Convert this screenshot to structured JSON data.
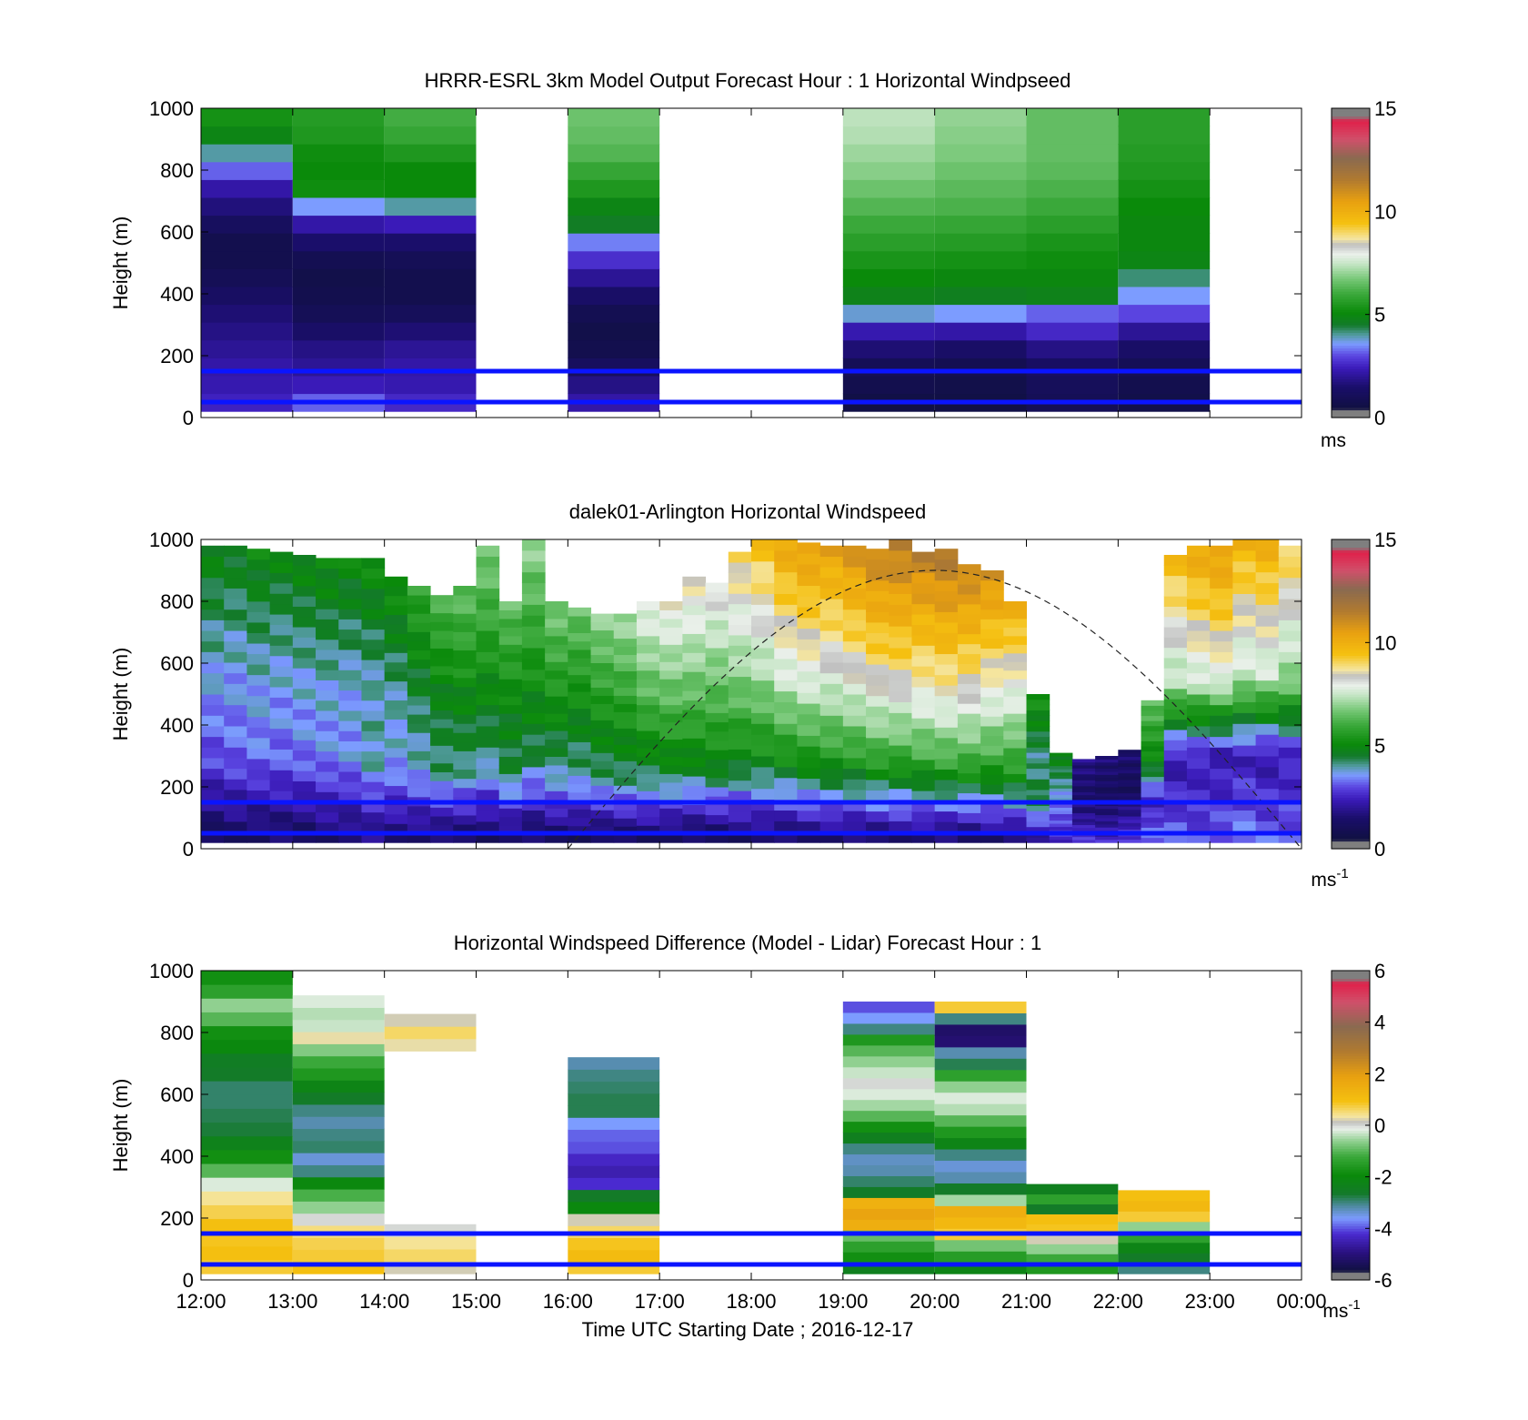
{
  "figure": {
    "xlabel": "Time UTC  Starting Date ; 2016-12-17",
    "x_ticks": [
      "12:00",
      "13:00",
      "14:00",
      "15:00",
      "16:00",
      "17:00",
      "18:00",
      "19:00",
      "20:00",
      "21:00",
      "22:00",
      "23:00",
      "00:00"
    ],
    "y_ticks": [
      "0",
      "200",
      "400",
      "600",
      "800",
      "1000"
    ],
    "ylabel": "Height (m)"
  },
  "chart_data": [
    {
      "type": "heatmap",
      "title": "HRRR-ESRL 3km Model Output   Forecast Hour : 1 Horizontal Windpseed",
      "ylabel": "Height (m)",
      "xlabel": "",
      "xlim": [
        12,
        24
      ],
      "ylim": [
        0,
        1000
      ],
      "colorbar": {
        "min": 0,
        "max": 15,
        "ticks": [
          "0",
          "5",
          "10",
          "15"
        ],
        "unit": "ms"
      },
      "reference_lines_m": [
        50,
        150
      ],
      "columns": [
        {
          "start": 12,
          "end": 13,
          "values": [
            2.5,
            2.3,
            2.2,
            2.0,
            1.8,
            1.6,
            1.3,
            1.0,
            0.8,
            0.8,
            1.2,
            1.7,
            2.2,
            3.2,
            4.0,
            4.9,
            5.3
          ]
        },
        {
          "start": 13,
          "end": 14,
          "values": [
            3.2,
            2.4,
            2.0,
            1.8,
            1.4,
            1.0,
            0.8,
            0.7,
            0.9,
            1.5,
            2.2,
            3.6,
            5.2,
            5.1,
            5.2,
            5.5,
            5.6
          ]
        },
        {
          "start": 14,
          "end": 15,
          "values": [
            2.6,
            2.3,
            2.2,
            2.0,
            1.6,
            1.1,
            0.8,
            0.8,
            1.0,
            1.5,
            2.4,
            4.0,
            5.1,
            5.1,
            5.5,
            5.9,
            6.1
          ]
        },
        {
          "start": 16,
          "end": 17,
          "values": [
            2.2,
            1.8,
            1.2,
            0.8,
            0.7,
            0.9,
            1.4,
            2.0,
            2.7,
            3.4,
            4.6,
            4.9,
            5.5,
            5.9,
            6.3,
            6.5,
            6.6
          ]
        },
        {
          "start": 19,
          "end": 20,
          "values": [
            0.6,
            0.8,
            1.0,
            1.6,
            2.3,
            3.8,
            4.8,
            5.1,
            5.4,
            5.7,
            6.0,
            6.3,
            6.6,
            6.9,
            7.1,
            7.3,
            7.4
          ]
        },
        {
          "start": 20,
          "end": 21,
          "values": [
            0.6,
            0.7,
            0.9,
            1.4,
            2.2,
            3.6,
            4.7,
            5.0,
            5.3,
            5.6,
            5.9,
            6.2,
            6.4,
            6.6,
            6.8,
            6.9,
            7.0
          ]
        },
        {
          "start": 21,
          "end": 22,
          "values": [
            1.0,
            1.1,
            1.3,
            1.8,
            2.6,
            3.2,
            4.8,
            5.0,
            5.2,
            5.4,
            5.7,
            6.0,
            6.2,
            6.4,
            6.5,
            6.5,
            6.5
          ]
        },
        {
          "start": 22,
          "end": 23,
          "values": [
            0.7,
            0.8,
            1.0,
            1.4,
            2.0,
            3.0,
            3.6,
            4.2,
            4.9,
            5.0,
            5.0,
            5.1,
            5.3,
            5.5,
            5.6,
            5.7,
            5.7
          ]
        }
      ]
    },
    {
      "type": "heatmap",
      "title": "dalek01-Arlington  Horizontal Windspeed",
      "ylabel": "Height (m)",
      "xlabel": "",
      "xlim": [
        12,
        24
      ],
      "ylim": [
        0,
        1000
      ],
      "colorbar": {
        "min": 0,
        "max": 15,
        "ticks": [
          "0",
          "5",
          "10",
          "15"
        ],
        "unit": "ms-1"
      },
      "reference_lines_m": [
        50,
        150
      ],
      "overlay_curve": "dashed arc, rises from 16:00 (0 m) to peak ~900 m near 20:00, back to 0 m at 00:00",
      "observations": [
        {
          "t": 12.0,
          "top": 980,
          "surf": 1.2,
          "mid": 3.0,
          "upper": 4.9
        },
        {
          "t": 12.25,
          "top": 980,
          "surf": 1.3,
          "mid": 3.2,
          "upper": 4.8
        },
        {
          "t": 12.5,
          "top": 970,
          "surf": 1.2,
          "mid": 3.3,
          "upper": 5.0
        },
        {
          "t": 12.75,
          "top": 960,
          "surf": 1.4,
          "mid": 3.2,
          "upper": 4.9
        },
        {
          "t": 13.0,
          "top": 950,
          "surf": 1.3,
          "mid": 3.3,
          "upper": 5.0
        },
        {
          "t": 13.25,
          "top": 940,
          "surf": 1.5,
          "mid": 3.4,
          "upper": 5.1
        },
        {
          "t": 13.5,
          "top": 940,
          "surf": 1.5,
          "mid": 3.5,
          "upper": 5.0
        },
        {
          "t": 13.75,
          "top": 940,
          "surf": 1.8,
          "mid": 4.0,
          "upper": 5.2
        },
        {
          "t": 14.0,
          "top": 880,
          "surf": 1.6,
          "mid": 3.6,
          "upper": 5.3
        },
        {
          "t": 14.25,
          "top": 850,
          "surf": 1.5,
          "mid": 3.8,
          "upper": 5.8
        },
        {
          "t": 14.5,
          "top": 820,
          "surf": 1.4,
          "mid": 4.2,
          "upper": 6.2
        },
        {
          "t": 14.75,
          "top": 850,
          "surf": 1.4,
          "mid": 4.2,
          "upper": 6.5
        },
        {
          "t": 15.0,
          "top": 980,
          "surf": 1.3,
          "mid": 4.2,
          "upper": 6.8
        },
        {
          "t": 15.25,
          "top": 800,
          "surf": 1.4,
          "mid": 4.4,
          "upper": 6.5
        },
        {
          "t": 15.5,
          "top": 1000,
          "surf": 1.3,
          "mid": 4.4,
          "upper": 7.0
        },
        {
          "t": 15.75,
          "top": 800,
          "surf": 1.3,
          "mid": 4.0,
          "upper": 6.8
        },
        {
          "t": 16.0,
          "top": 780,
          "surf": 1.2,
          "mid": 4.0,
          "upper": 6.6
        },
        {
          "t": 16.25,
          "top": 760,
          "surf": 1.2,
          "mid": 4.2,
          "upper": 7.0
        },
        {
          "t": 16.5,
          "top": 760,
          "surf": 1.3,
          "mid": 4.3,
          "upper": 7.2
        },
        {
          "t": 16.75,
          "top": 800,
          "surf": 1.3,
          "mid": 4.4,
          "upper": 8.0
        },
        {
          "t": 17.0,
          "top": 800,
          "surf": 1.2,
          "mid": 4.6,
          "upper": 8.2
        },
        {
          "t": 17.25,
          "top": 880,
          "surf": 1.2,
          "mid": 4.8,
          "upper": 8.5
        },
        {
          "t": 17.5,
          "top": 860,
          "surf": 1.2,
          "mid": 4.9,
          "upper": 8.3
        },
        {
          "t": 17.75,
          "top": 960,
          "surf": 1.3,
          "mid": 5.0,
          "upper": 9.0
        },
        {
          "t": 18.0,
          "top": 1000,
          "surf": 1.4,
          "mid": 5.2,
          "upper": 9.5
        },
        {
          "t": 18.25,
          "top": 1000,
          "surf": 1.4,
          "mid": 5.4,
          "upper": 10.2
        },
        {
          "t": 18.5,
          "top": 990,
          "surf": 1.5,
          "mid": 5.5,
          "upper": 10.5
        },
        {
          "t": 18.75,
          "top": 980,
          "surf": 1.5,
          "mid": 5.6,
          "upper": 10.4
        },
        {
          "t": 19.0,
          "top": 980,
          "surf": 1.5,
          "mid": 5.7,
          "upper": 10.8
        },
        {
          "t": 19.25,
          "top": 970,
          "surf": 1.5,
          "mid": 5.9,
          "upper": 11.2
        },
        {
          "t": 19.5,
          "top": 1000,
          "surf": 1.6,
          "mid": 6.0,
          "upper": 11.5
        },
        {
          "t": 19.75,
          "top": 960,
          "surf": 1.5,
          "mid": 6.0,
          "upper": 11.3
        },
        {
          "t": 20.0,
          "top": 970,
          "surf": 1.5,
          "mid": 6.2,
          "upper": 11.6
        },
        {
          "t": 20.25,
          "top": 920,
          "surf": 1.4,
          "mid": 6.0,
          "upper": 11.2
        },
        {
          "t": 20.5,
          "top": 900,
          "surf": 1.5,
          "mid": 5.8,
          "upper": 10.8
        },
        {
          "t": 20.75,
          "top": 800,
          "surf": 1.5,
          "mid": 5.5,
          "upper": 10.0
        },
        {
          "t": 21.0,
          "top": 500,
          "surf": 1.8,
          "mid": 4.6,
          "upper": 5.4
        },
        {
          "t": 21.25,
          "top": 310,
          "surf": 2.6,
          "mid": 3.0,
          "upper": 5.0
        },
        {
          "t": 21.5,
          "top": 290,
          "surf": 2.8,
          "mid": 2.0,
          "upper": 1.8
        },
        {
          "t": 21.75,
          "top": 300,
          "surf": 2.6,
          "mid": 1.8,
          "upper": 1.6
        },
        {
          "t": 22.0,
          "top": 320,
          "surf": 3.0,
          "mid": 2.0,
          "upper": 1.5
        },
        {
          "t": 22.25,
          "top": 480,
          "surf": 3.4,
          "mid": 2.4,
          "upper": 6.5
        },
        {
          "t": 22.5,
          "top": 950,
          "surf": 3.2,
          "mid": 2.2,
          "upper": 9.6
        },
        {
          "t": 22.75,
          "top": 980,
          "surf": 3.0,
          "mid": 2.4,
          "upper": 10.2
        },
        {
          "t": 23.0,
          "top": 980,
          "surf": 3.2,
          "mid": 2.2,
          "upper": 10.5
        },
        {
          "t": 23.25,
          "top": 1000,
          "surf": 3.4,
          "mid": 2.4,
          "upper": 9.8
        },
        {
          "t": 23.5,
          "top": 1000,
          "surf": 3.2,
          "mid": 2.2,
          "upper": 10.0
        },
        {
          "t": 23.75,
          "top": 980,
          "surf": 3.2,
          "mid": 2.4,
          "upper": 9.2
        }
      ]
    },
    {
      "type": "heatmap",
      "title": "Horizontal Windspeed Difference (Model - Lidar) Forecast Hour : 1",
      "ylabel": "Height (m)",
      "xlabel": "Time UTC  Starting Date ; 2016-12-17",
      "xlim": [
        12,
        24
      ],
      "ylim": [
        0,
        1000
      ],
      "colorbar": {
        "min": -6,
        "max": 6,
        "ticks": [
          "-6",
          "-4",
          "-2",
          "0",
          "2",
          "4",
          "6"
        ],
        "unit": "ms-1"
      },
      "reference_lines_m": [
        50,
        150
      ],
      "columns": [
        {
          "start": 12,
          "end": 13,
          "top": 1000,
          "values": [
            0.8,
            1.0,
            0.9,
            1.0,
            0.7,
            0.4,
            -0.2,
            -1.0,
            -1.8,
            -2.3,
            -2.7,
            -2.8,
            -2.9,
            -2.9,
            -2.6,
            -2.5,
            -2.0,
            -1.8,
            -1.0,
            -0.6,
            -1.4,
            -1.8
          ]
        },
        {
          "start": 13,
          "end": 14,
          "top": 920,
          "values": [
            1.0,
            0.8,
            0.7,
            0.5,
            0.0,
            -0.6,
            -1.1,
            -2.0,
            -3.0,
            -3.4,
            -2.9,
            -3.0,
            -3.2,
            -3.0,
            -2.6,
            -2.2,
            -1.6,
            -1.2,
            -0.7,
            0.3,
            -0.3,
            -0.4,
            -0.2
          ]
        },
        {
          "start": 14,
          "end": 15,
          "top": 860,
          "values": [
            0.2,
            0.6,
            0.4,
            0.0,
            null,
            null,
            null,
            null,
            null,
            null,
            null,
            null,
            null,
            null,
            null,
            null,
            null,
            null,
            0.3,
            0.6,
            0.2
          ]
        },
        {
          "start": 16,
          "end": 17,
          "top": 720,
          "values": [
            0.8,
            1.1,
            0.9,
            0.6,
            0.2,
            -2.0,
            -2.6,
            -4.2,
            -4.5,
            -4.3,
            -4.0,
            -3.9,
            -3.6,
            -2.8,
            -2.8,
            -2.9,
            -3.0,
            -3.2
          ]
        },
        {
          "start": 19,
          "end": 20,
          "top": 900,
          "values": [
            -2.4,
            -1.8,
            -1.4,
            -0.9,
            1.5,
            1.8,
            1.4,
            -2.6,
            -2.9,
            -3.2,
            -3.3,
            -3.0,
            -2.4,
            -1.8,
            -1.0,
            -0.5,
            -0.2,
            0.0,
            -0.3,
            -0.6,
            -1.0,
            -1.6,
            -3.0,
            -3.6,
            -4.0
          ]
        },
        {
          "start": 20,
          "end": 21,
          "top": 900,
          "values": [
            -2.2,
            -1.5,
            -0.8,
            0.8,
            1.2,
            1.5,
            -0.5,
            -2.6,
            -3.2,
            -3.4,
            -3.0,
            -2.2,
            -1.6,
            -1.0,
            -0.4,
            -0.2,
            -0.6,
            -1.4,
            -2.8,
            -3.2,
            -5.1,
            -5.2,
            -3.0,
            0.8
          ]
        },
        {
          "start": 21,
          "end": 22,
          "top": 310,
          "values": [
            -1.6,
            -1.2,
            -0.6,
            0.2,
            0.9,
            1.0,
            -2.6,
            -1.4,
            -2.4
          ]
        },
        {
          "start": 22,
          "end": 23,
          "top": 290,
          "values": [
            -3.0,
            -2.6,
            -2.2,
            -1.4,
            -0.6,
            0.8,
            1.2,
            1.0
          ]
        }
      ]
    }
  ]
}
